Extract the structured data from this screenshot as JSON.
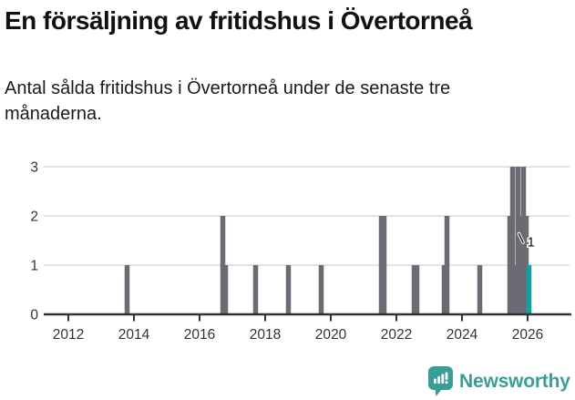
{
  "title": "En försäljning av fritidshus i Övertorneå",
  "subtitle": "Antal sålda fritidshus i Övertorneå under de senaste tre månaderna.",
  "branding": {
    "name": "Newsworthy"
  },
  "chart_data": {
    "type": "bar",
    "title": "En försäljning av fritidshus i Övertorneå",
    "xlabel": "",
    "ylabel": "",
    "x_axis": {
      "tick_years": [
        2012,
        2014,
        2016,
        2018,
        2020,
        2022,
        2024,
        2026
      ]
    },
    "y_axis": {
      "ticks": [
        0,
        1,
        2,
        3
      ],
      "ylim": [
        0,
        3
      ],
      "grid": true
    },
    "points": [
      {
        "date": "2013-10",
        "value": 1
      },
      {
        "date": "2016-09",
        "value": 2
      },
      {
        "date": "2016-10",
        "value": 1
      },
      {
        "date": "2017-09",
        "value": 1
      },
      {
        "date": "2018-09",
        "value": 1
      },
      {
        "date": "2019-09",
        "value": 1
      },
      {
        "date": "2021-07",
        "value": 2
      },
      {
        "date": "2021-08",
        "value": 2
      },
      {
        "date": "2022-07",
        "value": 1
      },
      {
        "date": "2022-08",
        "value": 1
      },
      {
        "date": "2023-06",
        "value": 1
      },
      {
        "date": "2023-07",
        "value": 2
      },
      {
        "date": "2024-07",
        "value": 1
      },
      {
        "date": "2025-06",
        "value": 2
      },
      {
        "date": "2025-07",
        "value": 3
      },
      {
        "date": "2025-08",
        "value": 1
      },
      {
        "date": "2025-09",
        "value": 3
      },
      {
        "date": "2025-10",
        "value": 2
      },
      {
        "date": "2025-11",
        "value": 3
      },
      {
        "date": "2025-12",
        "value": 2
      }
    ],
    "highlight_point": {
      "date": "2026-01",
      "value": 1,
      "label": "1"
    },
    "colors": {
      "bar": "#6b6b73",
      "highlight": "#12a0a0",
      "gridline": "#e3e3e3",
      "axis": "#333333",
      "tick_label": "#333333",
      "annotation_text": "#111111",
      "brand": "#3a9e96"
    }
  }
}
